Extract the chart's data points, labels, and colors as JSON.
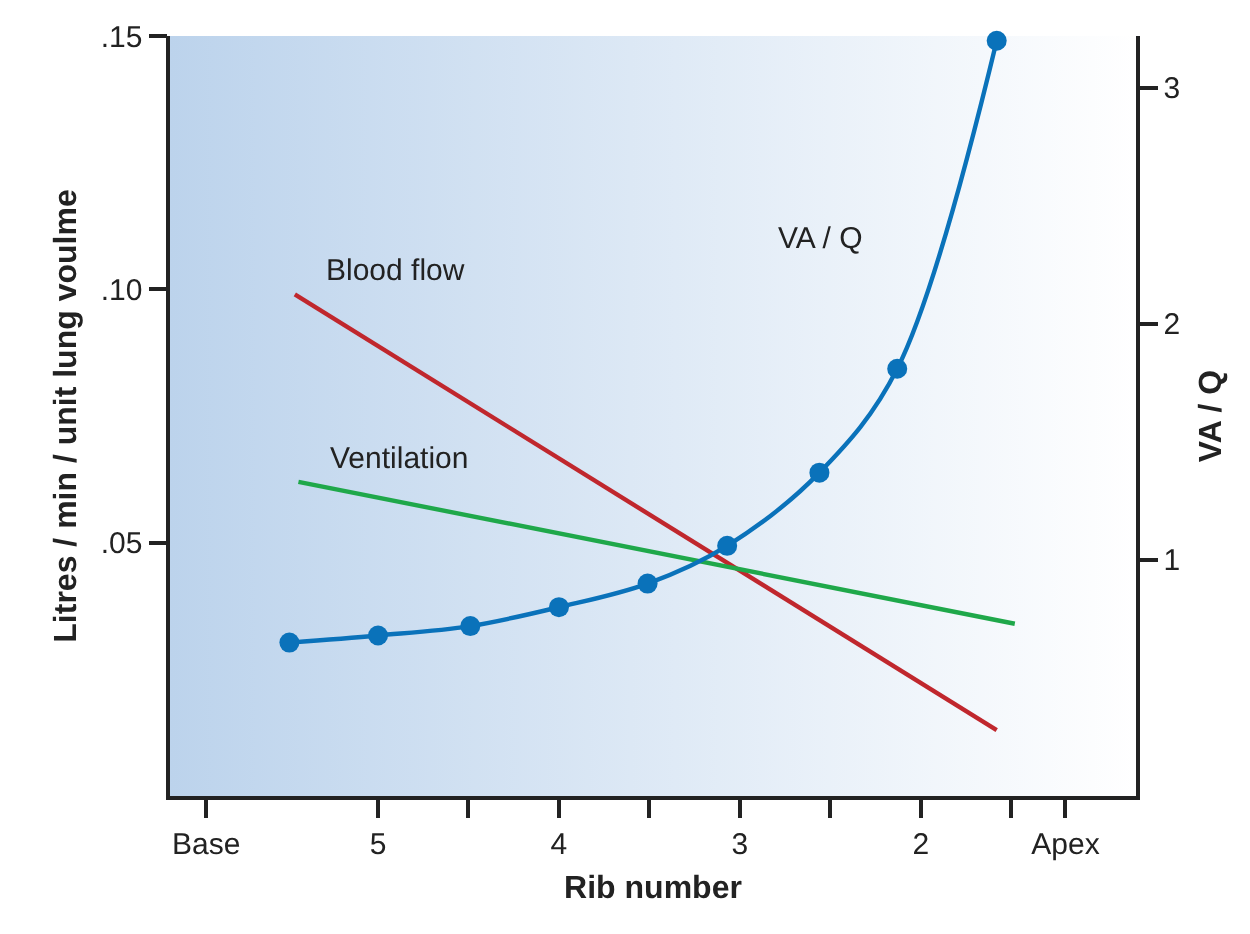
{
  "chart_data": {
    "type": "line",
    "xlabel": "Rib number",
    "ylabel": "Litres / min / unit lung voulme",
    "y2label": "VA / Q",
    "xlim": [
      6.15,
      0.81
    ],
    "xticks": [
      {
        "value": 5.95,
        "label": "Base"
      },
      5,
      {
        "value": 4.5,
        "label": null
      },
      4,
      {
        "value": 3.5,
        "label": null
      },
      3,
      {
        "value": 2.5,
        "label": null
      },
      2,
      {
        "value": 1.5,
        "label": null
      },
      {
        "value": 1.2,
        "label": "Apex"
      }
    ],
    "ylim": [
      0,
      0.15
    ],
    "yticks": [
      {
        "value": 0.05,
        "label": ".05"
      },
      {
        "value": 0.1,
        "label": ".10"
      },
      {
        "value": 0.15,
        "label": ".15"
      }
    ],
    "y2lim": [
      0,
      3.22
    ],
    "y2ticks": [
      1,
      2,
      3
    ],
    "grid": false,
    "legend": false,
    "series": [
      {
        "name": "Blood flow",
        "color": "#c0272d",
        "x": [
          5.46,
          1.58
        ],
        "values": [
          0.099,
          0.013
        ],
        "marker": "none"
      },
      {
        "name": "Ventilation",
        "color": "#1fa84a",
        "x": [
          5.44,
          1.48
        ],
        "values": [
          0.062,
          0.034
        ],
        "marker": "none"
      },
      {
        "name": "VA / Q",
        "color": "#0a72ba",
        "axis": "y2",
        "x": [
          5.49,
          5,
          4.49,
          4,
          3.51,
          3.07,
          2.56,
          2.13,
          1.58
        ],
        "values": [
          0.65,
          0.68,
          0.72,
          0.8,
          0.9,
          1.06,
          1.37,
          1.81,
          3.2
        ],
        "marker": "circle"
      }
    ]
  }
}
